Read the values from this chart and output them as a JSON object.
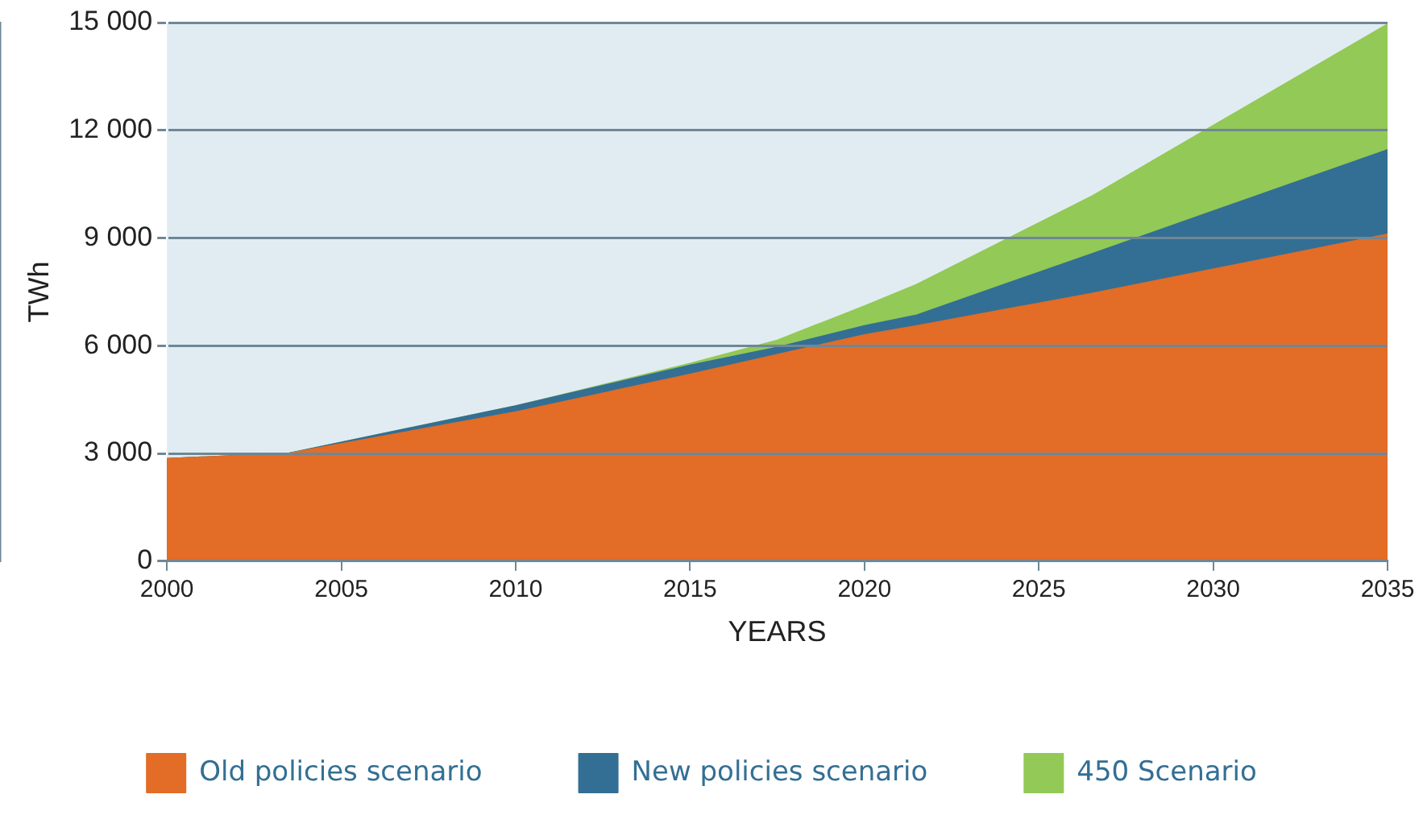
{
  "chart_data": {
    "type": "area",
    "xlabel": "YEARS",
    "ylabel": "TWh",
    "x": [
      2000,
      2003.5,
      2010,
      2015,
      2017.5,
      2020,
      2021.5,
      2026.5,
      2035
    ],
    "series": [
      {
        "name": "450 Scenario",
        "color": "#93c956",
        "values": [
          2850,
          3000,
          4320,
          5500,
          6150,
          7100,
          7700,
          10150,
          14950
        ]
      },
      {
        "name": "New policies scenario",
        "color": "#336f94",
        "values": [
          2850,
          3000,
          4320,
          5450,
          5950,
          6550,
          6850,
          8550,
          11450
        ]
      },
      {
        "name": "Old policies scenario",
        "color": "#e36c26",
        "values": [
          2850,
          3000,
          4150,
          5200,
          5750,
          6300,
          6550,
          7450,
          9100
        ]
      }
    ],
    "xlim": [
      2000,
      2035
    ],
    "xticks": [
      2000,
      2005,
      2010,
      2015,
      2020,
      2025,
      2030,
      2035
    ],
    "ylim": [
      0,
      15000
    ],
    "yticks": [
      0,
      {
        "value": 3000,
        "label": "3 000"
      },
      {
        "value": 6000,
        "label": "6 000"
      },
      {
        "value": 9000,
        "label": "9 000"
      },
      {
        "value": 12000,
        "label": "12 000"
      },
      {
        "value": 15000,
        "label": "15 000"
      }
    ],
    "grid": "y",
    "legend": "bottom",
    "marker": "none"
  }
}
